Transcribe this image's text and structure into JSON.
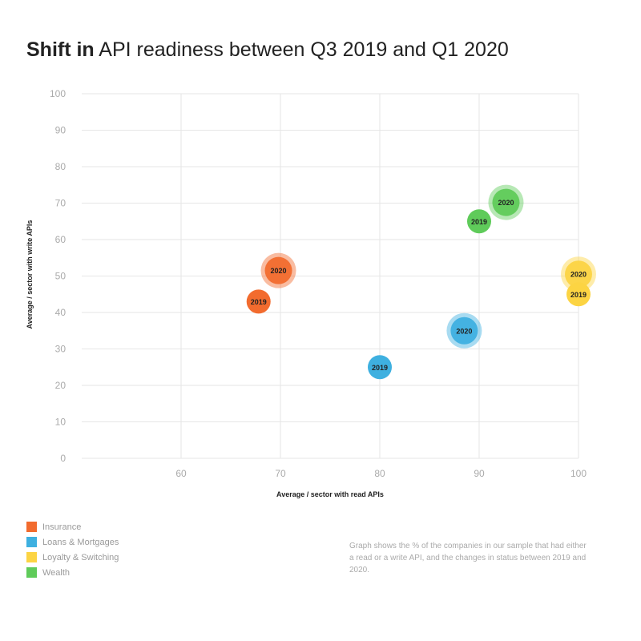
{
  "title": {
    "bold": "Shift in",
    "rest": "API readiness between Q3 2019 and Q1 2020"
  },
  "note": "Graph shows the % of the companies in our sample that had either a read or a write API, and the changes in status between 2019 and 2020.",
  "chart_data": {
    "type": "scatter",
    "title": "Shift in API readiness between Q3 2019 and Q1 2020",
    "xlabel": "Average / sector with read APIs",
    "ylabel": "Average / sector with write APIs",
    "xlim": [
      50,
      100
    ],
    "ylim": [
      0,
      100
    ],
    "xticks": [
      60,
      70,
      80,
      90,
      100
    ],
    "yticks": [
      0,
      10,
      20,
      30,
      40,
      50,
      60,
      70,
      80,
      90,
      100
    ],
    "grid": true,
    "legend_position": "bottom-left",
    "series": [
      {
        "name": "Insurance",
        "color": "#f26b2e",
        "points": [
          {
            "label": "2019",
            "x": 67.8,
            "y": 43
          },
          {
            "label": "2020",
            "x": 69.8,
            "y": 51.5
          }
        ]
      },
      {
        "name": "Loans & Mortgages",
        "color": "#3eb0e0",
        "points": [
          {
            "label": "2019",
            "x": 80,
            "y": 25
          },
          {
            "label": "2020",
            "x": 88.5,
            "y": 35
          }
        ]
      },
      {
        "name": "Loyalty & Switching",
        "color": "#fcd443",
        "points": [
          {
            "label": "2019",
            "x": 100,
            "y": 45
          },
          {
            "label": "2020",
            "x": 100,
            "y": 50.5
          }
        ]
      },
      {
        "name": "Wealth",
        "color": "#5fcb5a",
        "points": [
          {
            "label": "2019",
            "x": 90,
            "y": 65
          },
          {
            "label": "2020",
            "x": 92.7,
            "y": 70.2
          }
        ]
      }
    ]
  }
}
